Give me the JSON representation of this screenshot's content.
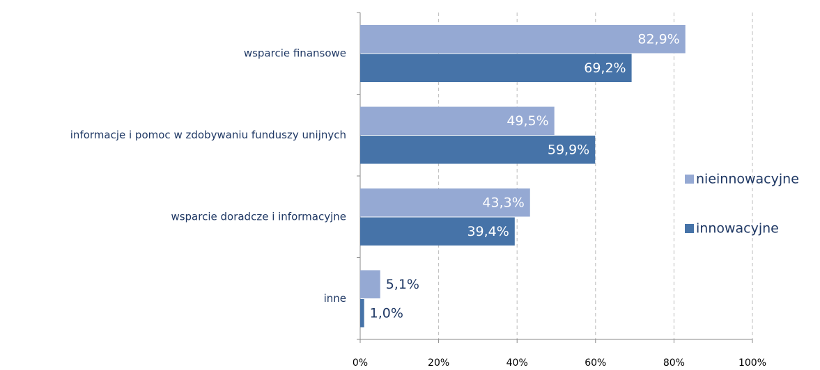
{
  "chart_data": {
    "type": "barh",
    "categories": [
      "wsparcie finansowe",
      "informacje i pomoc w zdobywaniu funduszy unijnych",
      "wsparcie doradcze i informacyjne",
      "inne"
    ],
    "series": [
      {
        "name": "nieinnowacyjne",
        "color": "#95a9d3",
        "values": [
          82.9,
          49.5,
          43.3,
          5.1
        ],
        "value_labels": [
          "82,9%",
          "49,5%",
          "43,3%",
          "5,1%"
        ]
      },
      {
        "name": "innowacyjne",
        "color": "#4673a8",
        "values": [
          69.2,
          59.9,
          39.4,
          1.0
        ],
        "value_labels": [
          "69,2%",
          "59,9%",
          "39,4%",
          "1,0%"
        ]
      }
    ],
    "xlim": [
      0,
      100
    ],
    "xticks": [
      {
        "value": 0,
        "label": "0%"
      },
      {
        "value": 20,
        "label": "20%"
      },
      {
        "value": 40,
        "label": "40%"
      },
      {
        "value": 60,
        "label": "60%"
      },
      {
        "value": 80,
        "label": "80%"
      },
      {
        "value": 100,
        "label": "100%"
      }
    ],
    "grid": true,
    "legend": "right"
  }
}
